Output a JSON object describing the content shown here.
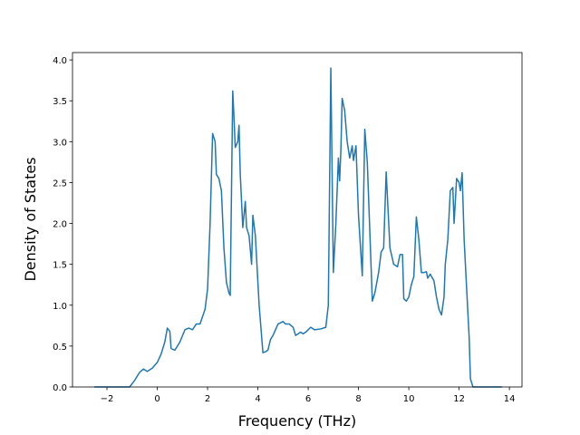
{
  "chart_data": {
    "type": "line",
    "xlabel": "Frequency (THz)",
    "ylabel": "Density of States",
    "x": [
      -2.5,
      -1.1,
      -0.9,
      -0.7,
      -0.55,
      -0.4,
      -0.2,
      0,
      0.15,
      0.3,
      0.4,
      0.5,
      0.55,
      0.7,
      0.9,
      1.1,
      1.25,
      1.4,
      1.55,
      1.7,
      1.9,
      2.0,
      2.1,
      2.2,
      2.3,
      2.35,
      2.45,
      2.55,
      2.65,
      2.75,
      2.85,
      2.9,
      3.0,
      3.05,
      3.1,
      3.2,
      3.25,
      3.3,
      3.4,
      3.5,
      3.55,
      3.65,
      3.75,
      3.8,
      3.9,
      4.05,
      4.2,
      4.3,
      4.4,
      4.5,
      4.6,
      4.8,
      5.0,
      5.1,
      5.25,
      5.4,
      5.5,
      5.6,
      5.7,
      5.8,
      5.9,
      6.1,
      6.25,
      6.5,
      6.7,
      6.8,
      6.9,
      7.0,
      7.1,
      7.2,
      7.25,
      7.3,
      7.35,
      7.45,
      7.55,
      7.65,
      7.75,
      7.8,
      7.9,
      8.0,
      8.15,
      8.25,
      8.35,
      8.45,
      8.55,
      8.65,
      8.8,
      8.9,
      9.0,
      9.1,
      9.25,
      9.4,
      9.55,
      9.65,
      9.75,
      9.8,
      9.9,
      10.0,
      10.1,
      10.2,
      10.3,
      10.4,
      10.5,
      10.6,
      10.7,
      10.75,
      10.85,
      11.0,
      11.1,
      11.2,
      11.3,
      11.4,
      11.45,
      11.55,
      11.65,
      11.75,
      11.8,
      11.9,
      12.0,
      12.05,
      12.12,
      12.2,
      12.3,
      12.4,
      12.45,
      12.55,
      13.7
    ],
    "series": [
      {
        "color": "#1f77b4",
        "values": [
          0,
          0,
          0.08,
          0.18,
          0.22,
          0.19,
          0.23,
          0.3,
          0.4,
          0.55,
          0.72,
          0.68,
          0.47,
          0.45,
          0.55,
          0.7,
          0.72,
          0.7,
          0.77,
          0.77,
          0.95,
          1.2,
          2.0,
          3.1,
          3.0,
          2.6,
          2.55,
          2.4,
          1.7,
          1.28,
          1.15,
          1.12,
          3.62,
          3.3,
          2.93,
          3.0,
          3.2,
          2.6,
          1.95,
          2.27,
          1.95,
          1.85,
          1.5,
          2.1,
          1.85,
          1.0,
          0.42,
          0.43,
          0.45,
          0.58,
          0.63,
          0.77,
          0.8,
          0.77,
          0.77,
          0.73,
          0.63,
          0.65,
          0.67,
          0.65,
          0.67,
          0.73,
          0.7,
          0.71,
          0.73,
          1.0,
          3.9,
          1.4,
          2.0,
          2.8,
          2.52,
          2.9,
          3.53,
          3.38,
          3.0,
          2.8,
          2.95,
          2.77,
          2.95,
          2.1,
          1.36,
          3.15,
          2.75,
          1.9,
          1.05,
          1.15,
          1.4,
          1.65,
          1.7,
          2.63,
          1.7,
          1.5,
          1.47,
          1.62,
          1.62,
          1.08,
          1.05,
          1.1,
          1.25,
          1.35,
          2.08,
          1.8,
          1.4,
          1.4,
          1.41,
          1.33,
          1.38,
          1.3,
          1.1,
          0.95,
          0.88,
          1.1,
          1.5,
          1.8,
          2.4,
          2.44,
          2.0,
          2.55,
          2.5,
          2.4,
          2.62,
          1.8,
          1.2,
          0.6,
          0.1,
          0,
          0
        ]
      }
    ],
    "xlim": [
      -3.37,
      14.5
    ],
    "ylim": [
      0,
      4.09
    ],
    "xticks": [
      {
        "value": -2,
        "label": "−2"
      },
      0,
      2,
      4,
      6,
      8,
      10,
      12,
      14
    ],
    "yticks": [
      {
        "value": 0,
        "label": "0.0"
      },
      {
        "value": 0.5,
        "label": "0.5"
      },
      {
        "value": 1,
        "label": "1.0"
      },
      {
        "value": 1.5,
        "label": "1.5"
      },
      {
        "value": 2,
        "label": "2.0"
      },
      {
        "value": 2.5,
        "label": "2.5"
      },
      {
        "value": 3,
        "label": "3.0"
      },
      {
        "value": 3.5,
        "label": "3.5"
      },
      {
        "value": 4,
        "label": "4.0"
      }
    ]
  }
}
